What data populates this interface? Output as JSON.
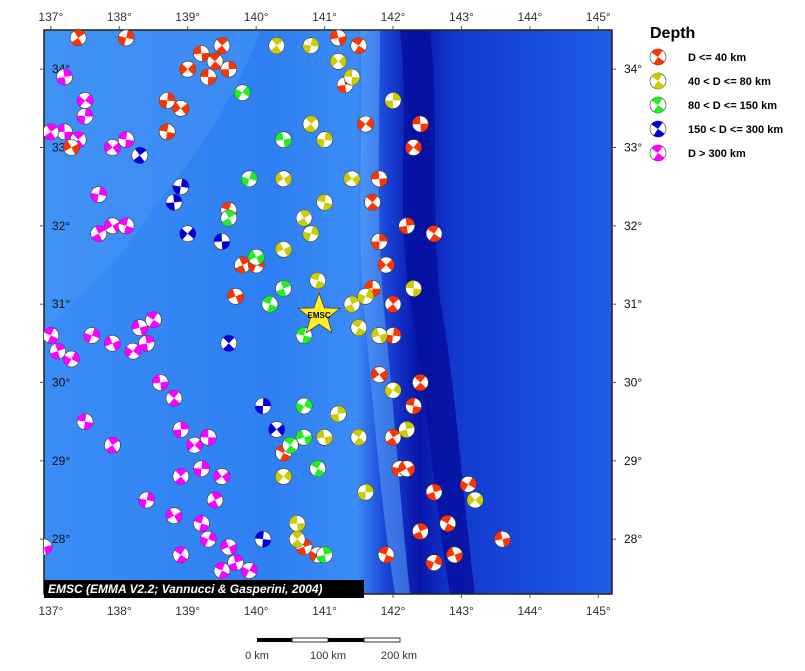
{
  "map": {
    "lon_range": [
      136.9,
      145.2
    ],
    "lat_range": [
      27.3,
      34.5
    ],
    "lon_ticks": [
      "137°",
      "138°",
      "139°",
      "140°",
      "141°",
      "142°",
      "143°",
      "144°",
      "145°"
    ],
    "lat_ticks": [
      "28°",
      "29°",
      "30°",
      "31°",
      "32°",
      "33°",
      "34°"
    ],
    "credit": "EMSC (EMMA V2.2; Vannucci & Gasperini, 2004)",
    "station_label": "EMSC",
    "station_lon": 140.92,
    "station_lat": 30.86,
    "colors": {
      "shallow": "#ff3300",
      "intermediate": "#cccc00",
      "mid_deep": "#22ee22",
      "deep": "#0000dd",
      "very_deep": "#ff00ff",
      "ocean": "#1f6ef0",
      "trench": "#0000aa"
    }
  },
  "legend": {
    "title": "Depth",
    "items": [
      {
        "label": "D <= 40 km",
        "color": "#ff3300"
      },
      {
        "label": "40 < D <= 80 km",
        "color": "#cccc00"
      },
      {
        "label": "80 < D <= 150 km",
        "color": "#22ee22"
      },
      {
        "label": "150 < D <= 300 km",
        "color": "#0000dd"
      },
      {
        "label": "D > 300 km",
        "color": "#ff00ff"
      }
    ]
  },
  "scale_bar": {
    "labels": [
      "0 km",
      "100 km",
      "200 km"
    ]
  },
  "events": [
    {
      "lon": 137.2,
      "lat": 33.2,
      "c": "very_deep"
    },
    {
      "lon": 137.4,
      "lat": 33.1,
      "c": "very_deep"
    },
    {
      "lon": 137.5,
      "lat": 33.4,
      "c": "very_deep"
    },
    {
      "lon": 137.9,
      "lat": 33.0,
      "c": "very_deep"
    },
    {
      "lon": 138.1,
      "lat": 33.1,
      "c": "very_deep"
    },
    {
      "lon": 137.0,
      "lat": 33.2,
      "c": "very_deep"
    },
    {
      "lon": 137.7,
      "lat": 32.4,
      "c": "very_deep"
    },
    {
      "lon": 137.9,
      "lat": 32.0,
      "c": "very_deep"
    },
    {
      "lon": 138.1,
      "lat": 32.0,
      "c": "very_deep"
    },
    {
      "lon": 137.7,
      "lat": 31.9,
      "c": "very_deep"
    },
    {
      "lon": 137.6,
      "lat": 30.6,
      "c": "very_deep"
    },
    {
      "lon": 137.9,
      "lat": 30.5,
      "c": "very_deep"
    },
    {
      "lon": 137.0,
      "lat": 30.6,
      "c": "very_deep"
    },
    {
      "lon": 137.1,
      "lat": 30.4,
      "c": "very_deep"
    },
    {
      "lon": 137.3,
      "lat": 30.3,
      "c": "very_deep"
    },
    {
      "lon": 138.3,
      "lat": 30.7,
      "c": "very_deep"
    },
    {
      "lon": 138.5,
      "lat": 30.8,
      "c": "very_deep"
    },
    {
      "lon": 138.4,
      "lat": 30.5,
      "c": "very_deep"
    },
    {
      "lon": 138.2,
      "lat": 30.4,
      "c": "very_deep"
    },
    {
      "lon": 138.6,
      "lat": 30.0,
      "c": "very_deep"
    },
    {
      "lon": 138.8,
      "lat": 29.8,
      "c": "very_deep"
    },
    {
      "lon": 138.9,
      "lat": 29.4,
      "c": "very_deep"
    },
    {
      "lon": 139.1,
      "lat": 29.2,
      "c": "very_deep"
    },
    {
      "lon": 139.3,
      "lat": 29.3,
      "c": "very_deep"
    },
    {
      "lon": 138.9,
      "lat": 28.8,
      "c": "very_deep"
    },
    {
      "lon": 139.2,
      "lat": 28.9,
      "c": "very_deep"
    },
    {
      "lon": 139.5,
      "lat": 28.8,
      "c": "very_deep"
    },
    {
      "lon": 137.5,
      "lat": 29.5,
      "c": "very_deep"
    },
    {
      "lon": 137.9,
      "lat": 29.2,
      "c": "very_deep"
    },
    {
      "lon": 138.4,
      "lat": 28.5,
      "c": "very_deep"
    },
    {
      "lon": 138.8,
      "lat": 28.3,
      "c": "very_deep"
    },
    {
      "lon": 139.2,
      "lat": 28.2,
      "c": "very_deep"
    },
    {
      "lon": 139.4,
      "lat": 28.5,
      "c": "very_deep"
    },
    {
      "lon": 139.3,
      "lat": 28.0,
      "c": "very_deep"
    },
    {
      "lon": 139.6,
      "lat": 27.9,
      "c": "very_deep"
    },
    {
      "lon": 139.5,
      "lat": 27.6,
      "c": "very_deep"
    },
    {
      "lon": 139.7,
      "lat": 27.7,
      "c": "very_deep"
    },
    {
      "lon": 139.9,
      "lat": 27.6,
      "c": "very_deep"
    },
    {
      "lon": 136.9,
      "lat": 27.9,
      "c": "very_deep"
    },
    {
      "lon": 138.9,
      "lat": 27.8,
      "c": "very_deep"
    },
    {
      "lon": 137.2,
      "lat": 33.9,
      "c": "very_deep"
    },
    {
      "lon": 137.5,
      "lat": 33.6,
      "c": "very_deep"
    },
    {
      "lon": 139.2,
      "lat": 34.2,
      "c": "shallow"
    },
    {
      "lon": 139.4,
      "lat": 34.1,
      "c": "shallow"
    },
    {
      "lon": 139.6,
      "lat": 34.0,
      "c": "shallow"
    },
    {
      "lon": 139.0,
      "lat": 34.0,
      "c": "shallow"
    },
    {
      "lon": 139.3,
      "lat": 33.9,
      "c": "shallow"
    },
    {
      "lon": 139.5,
      "lat": 34.3,
      "c": "shallow"
    },
    {
      "lon": 138.7,
      "lat": 33.6,
      "c": "shallow"
    },
    {
      "lon": 138.9,
      "lat": 33.5,
      "c": "shallow"
    },
    {
      "lon": 138.7,
      "lat": 33.2,
      "c": "shallow"
    },
    {
      "lon": 137.4,
      "lat": 34.4,
      "c": "shallow"
    },
    {
      "lon": 138.1,
      "lat": 34.4,
      "c": "shallow"
    },
    {
      "lon": 137.3,
      "lat": 33.0,
      "c": "shallow"
    },
    {
      "lon": 139.6,
      "lat": 32.2,
      "c": "shallow"
    },
    {
      "lon": 139.8,
      "lat": 31.5,
      "c": "shallow"
    },
    {
      "lon": 140.0,
      "lat": 31.5,
      "c": "shallow"
    },
    {
      "lon": 139.7,
      "lat": 31.1,
      "c": "shallow"
    },
    {
      "lon": 140.4,
      "lat": 29.1,
      "c": "shallow"
    },
    {
      "lon": 140.7,
      "lat": 27.9,
      "c": "shallow"
    },
    {
      "lon": 140.9,
      "lat": 27.8,
      "c": "shallow"
    },
    {
      "lon": 141.2,
      "lat": 34.4,
      "c": "shallow"
    },
    {
      "lon": 141.5,
      "lat": 34.3,
      "c": "shallow"
    },
    {
      "lon": 141.3,
      "lat": 33.8,
      "c": "shallow"
    },
    {
      "lon": 141.6,
      "lat": 33.3,
      "c": "shallow"
    },
    {
      "lon": 141.8,
      "lat": 32.6,
      "c": "shallow"
    },
    {
      "lon": 141.7,
      "lat": 32.3,
      "c": "shallow"
    },
    {
      "lon": 141.8,
      "lat": 31.8,
      "c": "shallow"
    },
    {
      "lon": 141.9,
      "lat": 31.5,
      "c": "shallow"
    },
    {
      "lon": 141.7,
      "lat": 31.2,
      "c": "shallow"
    },
    {
      "lon": 142.0,
      "lat": 31.0,
      "c": "shallow"
    },
    {
      "lon": 142.0,
      "lat": 30.6,
      "c": "shallow"
    },
    {
      "lon": 141.8,
      "lat": 30.1,
      "c": "shallow"
    },
    {
      "lon": 142.3,
      "lat": 29.7,
      "c": "shallow"
    },
    {
      "lon": 142.0,
      "lat": 29.3,
      "c": "shallow"
    },
    {
      "lon": 142.1,
      "lat": 28.9,
      "c": "shallow"
    },
    {
      "lon": 142.2,
      "lat": 28.9,
      "c": "shallow"
    },
    {
      "lon": 141.9,
      "lat": 27.8,
      "c": "shallow"
    },
    {
      "lon": 142.4,
      "lat": 28.1,
      "c": "shallow"
    },
    {
      "lon": 142.6,
      "lat": 27.7,
      "c": "shallow"
    },
    {
      "lon": 142.9,
      "lat": 27.8,
      "c": "shallow"
    },
    {
      "lon": 142.8,
      "lat": 28.2,
      "c": "shallow"
    },
    {
      "lon": 142.6,
      "lat": 28.6,
      "c": "shallow"
    },
    {
      "lon": 143.1,
      "lat": 28.7,
      "c": "shallow"
    },
    {
      "lon": 143.6,
      "lat": 28.0,
      "c": "shallow"
    },
    {
      "lon": 142.6,
      "lat": 31.9,
      "c": "shallow"
    },
    {
      "lon": 142.2,
      "lat": 32.0,
      "c": "shallow"
    },
    {
      "lon": 142.3,
      "lat": 33.0,
      "c": "shallow"
    },
    {
      "lon": 142.4,
      "lat": 33.3,
      "c": "shallow"
    },
    {
      "lon": 142.4,
      "lat": 30.0,
      "c": "shallow"
    },
    {
      "lon": 142.0,
      "lat": 33.6,
      "c": "intermediate"
    },
    {
      "lon": 141.2,
      "lat": 34.1,
      "c": "intermediate"
    },
    {
      "lon": 141.4,
      "lat": 33.9,
      "c": "intermediate"
    },
    {
      "lon": 140.8,
      "lat": 33.3,
      "c": "intermediate"
    },
    {
      "lon": 141.0,
      "lat": 33.1,
      "c": "intermediate"
    },
    {
      "lon": 141.4,
      "lat": 32.6,
      "c": "intermediate"
    },
    {
      "lon": 141.0,
      "lat": 32.3,
      "c": "intermediate"
    },
    {
      "lon": 140.7,
      "lat": 32.1,
      "c": "intermediate"
    },
    {
      "lon": 140.8,
      "lat": 31.9,
      "c": "intermediate"
    },
    {
      "lon": 140.4,
      "lat": 31.7,
      "c": "intermediate"
    },
    {
      "lon": 140.9,
      "lat": 31.3,
      "c": "intermediate"
    },
    {
      "lon": 141.4,
      "lat": 31.0,
      "c": "intermediate"
    },
    {
      "lon": 141.6,
      "lat": 31.1,
      "c": "intermediate"
    },
    {
      "lon": 141.8,
      "lat": 30.6,
      "c": "intermediate"
    },
    {
      "lon": 141.5,
      "lat": 30.7,
      "c": "intermediate"
    },
    {
      "lon": 142.2,
      "lat": 29.4,
      "c": "intermediate"
    },
    {
      "lon": 142.0,
      "lat": 29.9,
      "c": "intermediate"
    },
    {
      "lon": 141.0,
      "lat": 29.3,
      "c": "intermediate"
    },
    {
      "lon": 141.5,
      "lat": 29.3,
      "c": "intermediate"
    },
    {
      "lon": 141.2,
      "lat": 29.6,
      "c": "intermediate"
    },
    {
      "lon": 140.4,
      "lat": 28.8,
      "c": "intermediate"
    },
    {
      "lon": 140.6,
      "lat": 28.2,
      "c": "intermediate"
    },
    {
      "lon": 140.6,
      "lat": 28.0,
      "c": "intermediate"
    },
    {
      "lon": 141.6,
      "lat": 28.6,
      "c": "intermediate"
    },
    {
      "lon": 143.2,
      "lat": 28.5,
      "c": "intermediate"
    },
    {
      "lon": 142.3,
      "lat": 31.2,
      "c": "intermediate"
    },
    {
      "lon": 140.3,
      "lat": 34.3,
      "c": "intermediate"
    },
    {
      "lon": 140.8,
      "lat": 34.3,
      "c": "intermediate"
    },
    {
      "lon": 140.4,
      "lat": 32.6,
      "c": "intermediate"
    },
    {
      "lon": 140.7,
      "lat": 30.6,
      "c": "mid_deep"
    },
    {
      "lon": 139.6,
      "lat": 32.1,
      "c": "mid_deep"
    },
    {
      "lon": 139.9,
      "lat": 32.6,
      "c": "mid_deep"
    },
    {
      "lon": 140.0,
      "lat": 31.6,
      "c": "mid_deep"
    },
    {
      "lon": 140.2,
      "lat": 31.0,
      "c": "mid_deep"
    },
    {
      "lon": 140.4,
      "lat": 31.2,
      "c": "mid_deep"
    },
    {
      "lon": 140.7,
      "lat": 29.7,
      "c": "mid_deep"
    },
    {
      "lon": 140.7,
      "lat": 29.3,
      "c": "mid_deep"
    },
    {
      "lon": 140.9,
      "lat": 28.9,
      "c": "mid_deep"
    },
    {
      "lon": 141.0,
      "lat": 27.8,
      "c": "mid_deep"
    },
    {
      "lon": 139.8,
      "lat": 33.7,
      "c": "mid_deep"
    },
    {
      "lon": 140.4,
      "lat": 33.1,
      "c": "mid_deep"
    },
    {
      "lon": 140.5,
      "lat": 29.2,
      "c": "mid_deep"
    },
    {
      "lon": 138.8,
      "lat": 32.3,
      "c": "deep"
    },
    {
      "lon": 139.0,
      "lat": 31.9,
      "c": "deep"
    },
    {
      "lon": 139.5,
      "lat": 31.8,
      "c": "deep"
    },
    {
      "lon": 139.6,
      "lat": 30.5,
      "c": "deep"
    },
    {
      "lon": 140.1,
      "lat": 29.7,
      "c": "deep"
    },
    {
      "lon": 140.3,
      "lat": 29.4,
      "c": "deep"
    },
    {
      "lon": 140.1,
      "lat": 28.0,
      "c": "deep"
    },
    {
      "lon": 138.3,
      "lat": 32.9,
      "c": "deep"
    },
    {
      "lon": 138.9,
      "lat": 32.5,
      "c": "deep"
    }
  ]
}
